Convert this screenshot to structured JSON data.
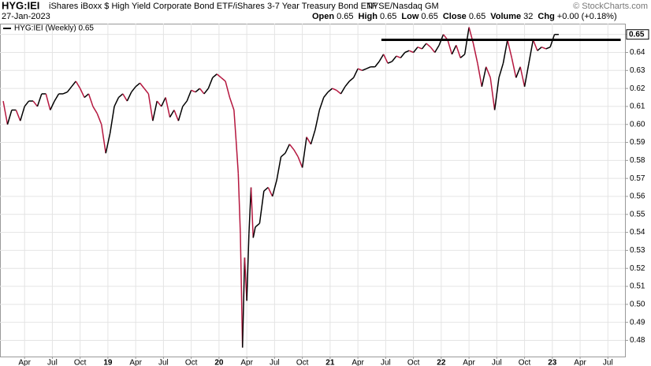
{
  "chart_data": {
    "type": "line",
    "symbol": "HYG:IEI",
    "description": "iShares iBoxx $ High Yield Corporate Bond ETF/iShares 3-7 Year Treasury Bond ETF",
    "exchange": "NYSE/Nasdaq GM",
    "copyright": "© StockCharts.com",
    "date": "27-Jan-2023",
    "quote": [
      {
        "label": "Open",
        "value": "0.65"
      },
      {
        "label": "High",
        "value": "0.65"
      },
      {
        "label": "Low",
        "value": "0.65"
      },
      {
        "label": "Close",
        "value": "0.65"
      },
      {
        "label": "Volume",
        "value": "32"
      },
      {
        "label": "Chg",
        "value": "+0.00 (+0.18%)"
      }
    ],
    "x": [
      3,
      5,
      7,
      9,
      11,
      13,
      15,
      17,
      19,
      21,
      23,
      25,
      27,
      29,
      31,
      33,
      35,
      37,
      39,
      41,
      43,
      45,
      47,
      49,
      51,
      53,
      55,
      57,
      59,
      61,
      63,
      65,
      67,
      69,
      71,
      73,
      75,
      77,
      79,
      81,
      83,
      85,
      87,
      89,
      91,
      93,
      95,
      97,
      99,
      101,
      103,
      105,
      107,
      109,
      111,
      112,
      113,
      114,
      115,
      116,
      117,
      118,
      119,
      120,
      121,
      123,
      125,
      127,
      129,
      131,
      133,
      135,
      137,
      139,
      141,
      143,
      145,
      147,
      149,
      151,
      153,
      155,
      157,
      159,
      161,
      163,
      165,
      167,
      169,
      171,
      173,
      175,
      177,
      179,
      181,
      183,
      185,
      187,
      189,
      191,
      193,
      195,
      197,
      199,
      201,
      203,
      205,
      207,
      209,
      211,
      213,
      215,
      217,
      219,
      221,
      223,
      225,
      227,
      229,
      231,
      233,
      235,
      237,
      239,
      241,
      243,
      245,
      247,
      249,
      251,
      253,
      255,
      257,
      259,
      261,
      263
    ],
    "series": [
      {
        "name": "HYG:IEI (Weekly) 0.65",
        "up_color": "#000000",
        "down_color": "#b5173f",
        "values": [
          0.613,
          0.6,
          0.608,
          0.608,
          0.602,
          0.61,
          0.613,
          0.613,
          0.61,
          0.617,
          0.617,
          0.608,
          0.613,
          0.617,
          0.617,
          0.618,
          0.621,
          0.624,
          0.62,
          0.615,
          0.617,
          0.61,
          0.606,
          0.6,
          0.584,
          0.595,
          0.61,
          0.615,
          0.617,
          0.613,
          0.618,
          0.621,
          0.623,
          0.62,
          0.617,
          0.602,
          0.613,
          0.61,
          0.615,
          0.604,
          0.608,
          0.602,
          0.61,
          0.613,
          0.619,
          0.618,
          0.62,
          0.617,
          0.62,
          0.626,
          0.628,
          0.626,
          0.624,
          0.615,
          0.608,
          0.591,
          0.573,
          0.539,
          0.476,
          0.526,
          0.502,
          0.539,
          0.565,
          0.537,
          0.543,
          0.545,
          0.563,
          0.565,
          0.56,
          0.569,
          0.582,
          0.584,
          0.589,
          0.586,
          0.582,
          0.576,
          0.593,
          0.589,
          0.597,
          0.608,
          0.615,
          0.618,
          0.62,
          0.619,
          0.617,
          0.621,
          0.624,
          0.626,
          0.631,
          0.63,
          0.631,
          0.632,
          0.632,
          0.635,
          0.639,
          0.634,
          0.635,
          0.638,
          0.637,
          0.64,
          0.641,
          0.64,
          0.643,
          0.642,
          0.645,
          0.643,
          0.64,
          0.644,
          0.65,
          0.647,
          0.639,
          0.644,
          0.637,
          0.639,
          0.654,
          0.645,
          0.634,
          0.621,
          0.632,
          0.626,
          0.608,
          0.626,
          0.634,
          0.647,
          0.637,
          0.626,
          0.632,
          0.621,
          0.634,
          0.647,
          0.641,
          0.643,
          0.642,
          0.643,
          0.65,
          0.65
        ]
      }
    ],
    "reference_line": {
      "x": [
        180,
        292
      ],
      "y": 0.647
    },
    "xlim": [
      1.5,
      294
    ],
    "xticks": [
      {
        "value": 13,
        "label": "Apr"
      },
      {
        "value": 26,
        "label": "Jul"
      },
      {
        "value": 39,
        "label": "Oct"
      },
      {
        "value": 52,
        "label": "19"
      },
      {
        "value": 65,
        "label": "Apr"
      },
      {
        "value": 78,
        "label": "Jul"
      },
      {
        "value": 91,
        "label": "Oct"
      },
      {
        "value": 104,
        "label": "20"
      },
      {
        "value": 117,
        "label": "Apr"
      },
      {
        "value": 130,
        "label": "Jul"
      },
      {
        "value": 143,
        "label": "Oct"
      },
      {
        "value": 156,
        "label": "21"
      },
      {
        "value": 169,
        "label": "Apr"
      },
      {
        "value": 182,
        "label": "Jul"
      },
      {
        "value": 195,
        "label": "Oct"
      },
      {
        "value": 208,
        "label": "22"
      },
      {
        "value": 221,
        "label": "Apr"
      },
      {
        "value": 234,
        "label": "Jul"
      },
      {
        "value": 247,
        "label": "Oct"
      },
      {
        "value": 260,
        "label": "23"
      },
      {
        "value": 273,
        "label": "Apr"
      },
      {
        "value": 286,
        "label": "Jul"
      }
    ],
    "ylim": [
      0.471,
      0.656
    ],
    "yticks": [
      0.48,
      0.49,
      {
        "value": 0.5,
        "label": "0.50"
      },
      0.51,
      0.52,
      0.53,
      0.54,
      0.55,
      0.56,
      0.57,
      0.58,
      0.59,
      {
        "value": 0.6,
        "label": "0.60"
      },
      0.61,
      0.62,
      0.63,
      0.64,
      0.65
    ],
    "grid": true
  }
}
